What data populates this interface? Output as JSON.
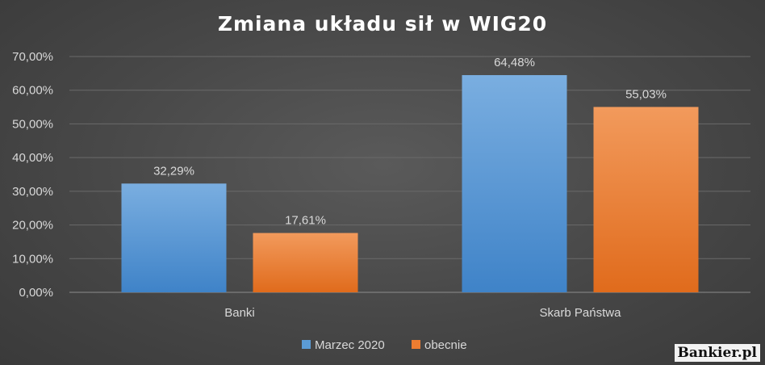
{
  "chart_data": {
    "type": "bar",
    "title": "Zmiana układu sił w WIG20",
    "categories": [
      "Banki",
      "Skarb Państwa"
    ],
    "series": [
      {
        "name": "Marzec 2020",
        "values": [
          32.29,
          64.48
        ],
        "labels": [
          "32,29%",
          "64,48%"
        ],
        "color": "#5b9bd5"
      },
      {
        "name": "obecnie",
        "values": [
          17.61,
          55.03
        ],
        "labels": [
          "17,61%",
          "55,03%"
        ],
        "color": "#ed7d31"
      }
    ],
    "ylim": [
      0,
      70
    ],
    "yticks": [
      0,
      10,
      20,
      30,
      40,
      50,
      60,
      70
    ],
    "ytick_labels": [
      "0,00%",
      "10,00%",
      "20,00%",
      "30,00%",
      "40,00%",
      "50,00%",
      "60,00%",
      "70,00%"
    ],
    "grid": true,
    "legend": "bottom"
  },
  "watermark": "Bankier.pl"
}
